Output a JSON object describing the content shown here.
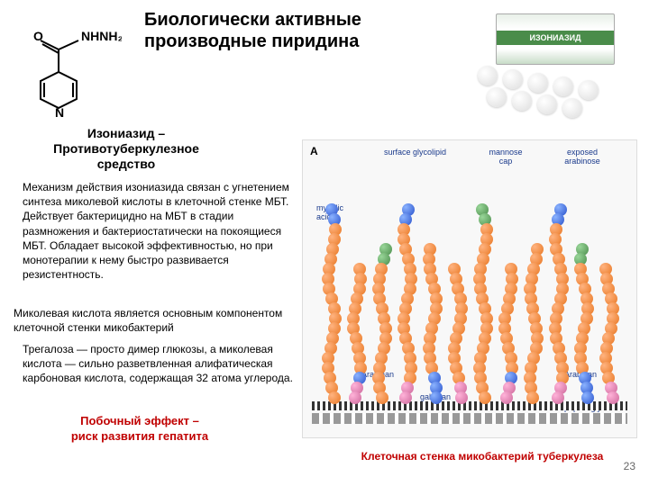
{
  "title": "Биологически активные производные пиридина",
  "molecule": {
    "atoms": {
      "O": "O",
      "N": "N",
      "NHNH2": "NHNH₂"
    },
    "bond_color": "#000000"
  },
  "drug_package": {
    "brand_label": "ИЗОНИАЗИД",
    "package_bg": "#e8f0e8",
    "stripe_bg": "#4a8c4a",
    "pill_color": "#f0f0f0"
  },
  "drug_name": {
    "line1": "Изониазид –",
    "line2": "Противотуберкулезное",
    "line3": "средство"
  },
  "mechanism_text": "Механизм действия изониазида связан с угнетением синтеза миколевой кислоты в клеточной стенке МБТ. Действует бактерицидно на МБТ в стадии размножения и бактериостатически на покоящиеся МБТ. Обладает высокой эффективностью, но при монотерапии к нему быстро развивается резистентность.",
  "mycolic_text": "Миколевая кислота является основным компонентом клеточной стенки микобактерий",
  "trehalose_text": "Трегалоза — просто димер глюкозы, а миколевая кислота — сильно разветвленная алифатическая карбоновая кислота, содержащая 32 атома углерода.",
  "side_effect": {
    "line1": "Побочный эффект –",
    "line2": "риск развития гепатита",
    "color": "#c00000"
  },
  "diagram": {
    "panel_label": "A",
    "labels": {
      "surface_glycolipid": "surface glycolipid",
      "mannose_cap": "mannose cap",
      "exposed_arabinose": "exposed arabinose",
      "mycolic_acids": "mycolic acids",
      "arabinan_left": "Arabinan",
      "arabinan_right": "Arabinan",
      "galactan": "galactan",
      "peptidoglycan": "peptidoglycan"
    },
    "colors": {
      "orange": "#e87722",
      "blue": "#2952cc",
      "green": "#4a8c4a",
      "pink": "#cc6699",
      "label_color": "#1a3a8c",
      "baseline": "#333333",
      "background": "#f8f8f8"
    },
    "helix_count": 12,
    "helix_height_beads": 16
  },
  "diagram_caption": "Клеточная стенка микобактерий туберкулеза",
  "page_number": "23"
}
